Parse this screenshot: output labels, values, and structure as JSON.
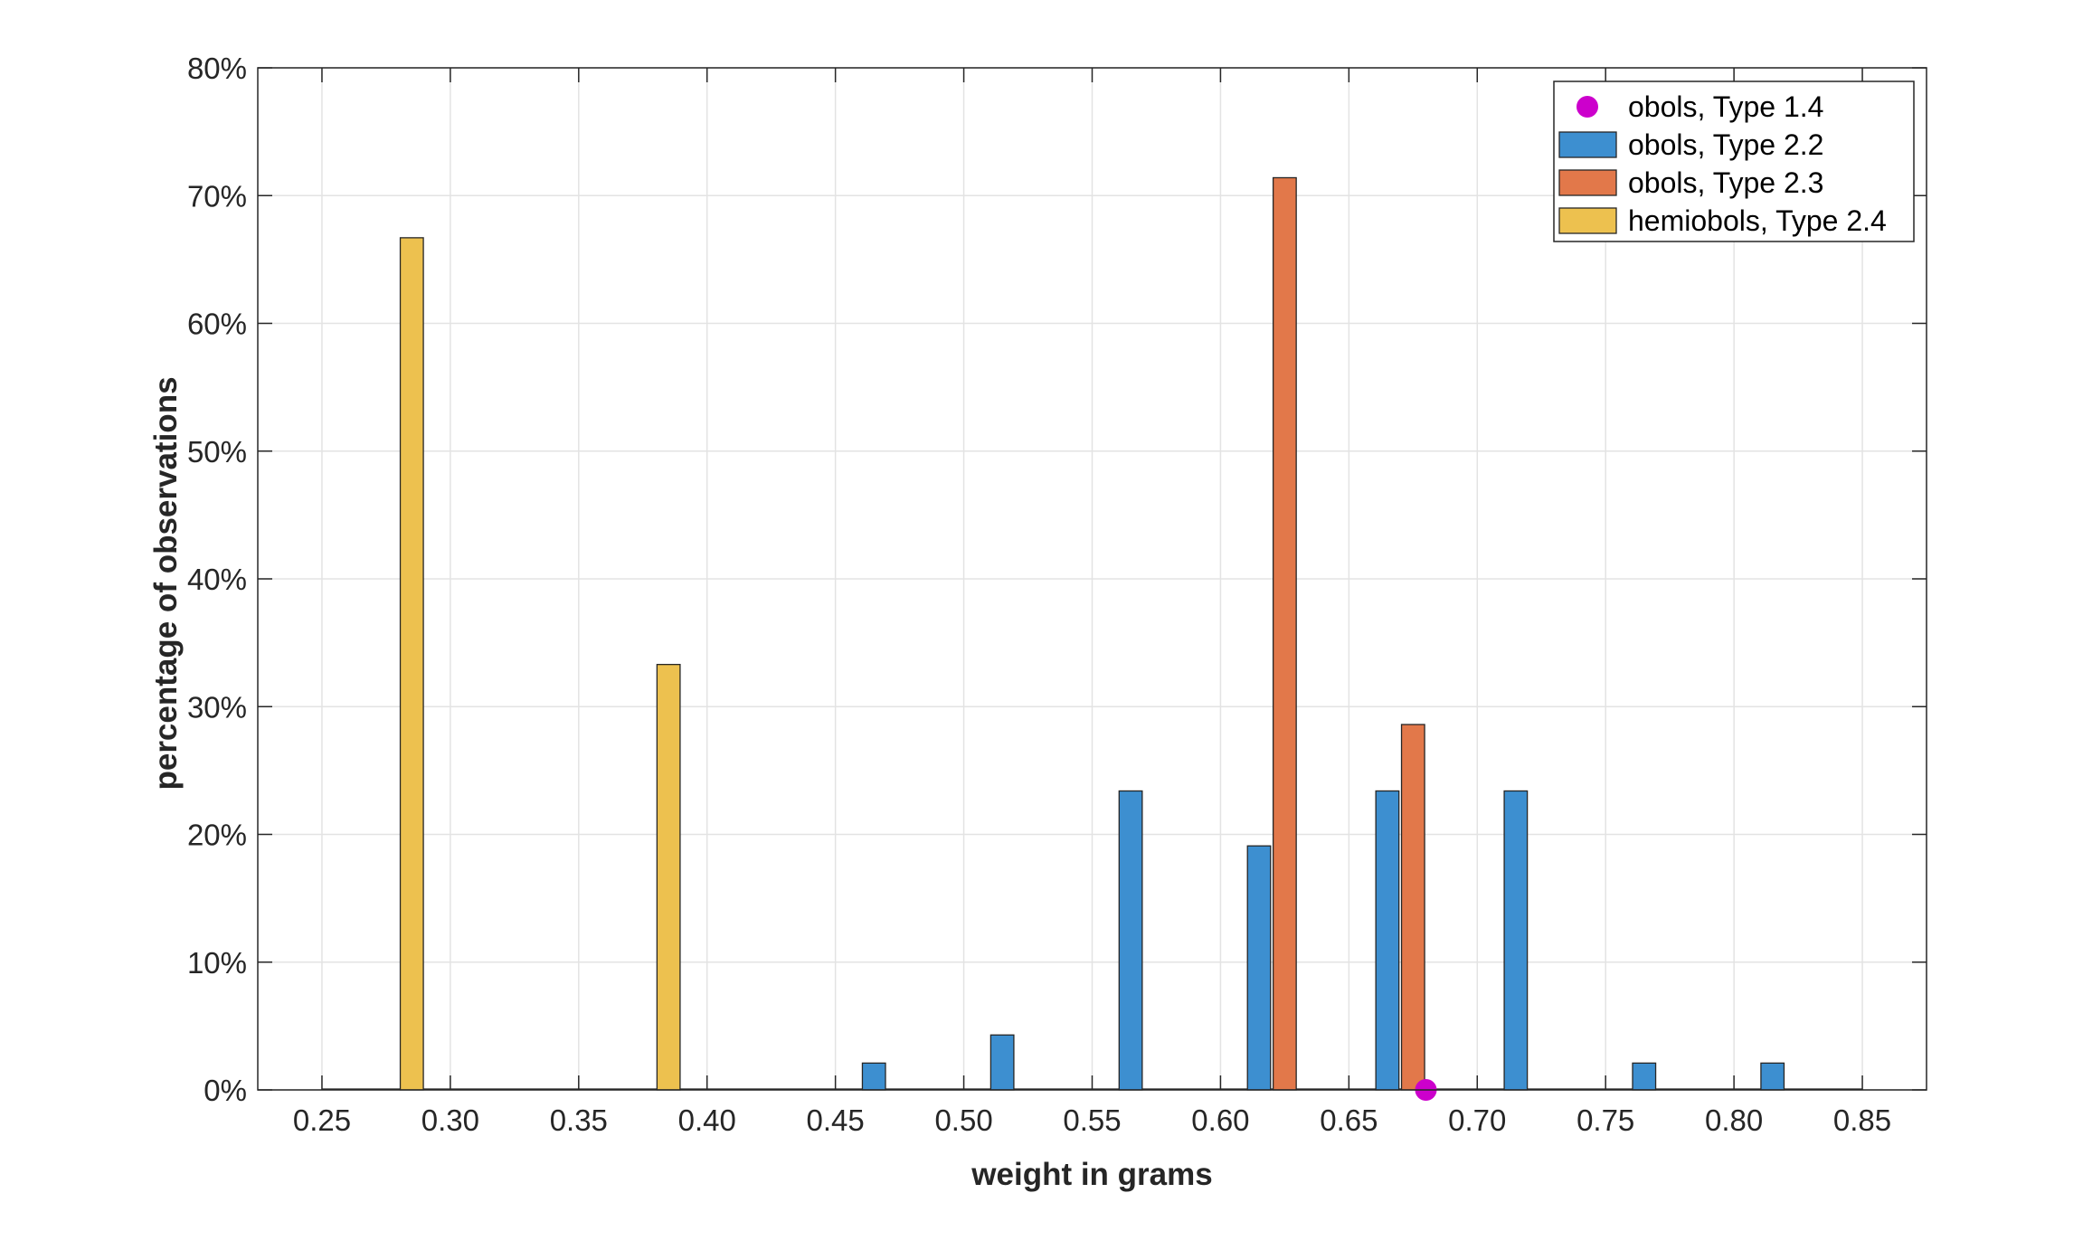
{
  "chart_data": {
    "type": "bar",
    "xlabel": "weight in grams",
    "ylabel": "percentage of observations",
    "xlim": [
      0.225,
      0.875
    ],
    "ylim": [
      0,
      80
    ],
    "xticks": [
      0.25,
      0.3,
      0.35,
      0.4,
      0.45,
      0.5,
      0.55,
      0.6,
      0.65,
      0.7,
      0.75,
      0.8,
      0.85
    ],
    "xtick_labels": [
      "0.25",
      "0.30",
      "0.35",
      "0.40",
      "0.45",
      "0.50",
      "0.55",
      "0.60",
      "0.65",
      "0.70",
      "0.75",
      "0.80",
      "0.85"
    ],
    "yticks": [
      0,
      10,
      20,
      30,
      40,
      50,
      60,
      70,
      80
    ],
    "ytick_labels": [
      "0%",
      "10%",
      "20%",
      "30%",
      "40%",
      "50%",
      "60%",
      "70%",
      "80%"
    ],
    "grid": true,
    "legend_position": "top-right",
    "series": [
      {
        "name": "obols, Type 1.4",
        "kind": "point",
        "color": "#CC00CC",
        "points": [
          {
            "x": 0.68,
            "y": 0
          }
        ]
      },
      {
        "name": "obols, Type 2.2",
        "kind": "bar",
        "color": "#3D8FD0",
        "bars": [
          {
            "x": 0.465,
            "y": 2.1
          },
          {
            "x": 0.515,
            "y": 4.3
          },
          {
            "x": 0.565,
            "y": 23.4
          },
          {
            "x": 0.615,
            "y": 19.1
          },
          {
            "x": 0.665,
            "y": 23.4
          },
          {
            "x": 0.715,
            "y": 23.4
          },
          {
            "x": 0.765,
            "y": 2.1
          },
          {
            "x": 0.815,
            "y": 2.1
          }
        ]
      },
      {
        "name": "obols, Type 2.3",
        "kind": "bar",
        "color": "#E2784A",
        "bars": [
          {
            "x": 0.625,
            "y": 71.4
          },
          {
            "x": 0.675,
            "y": 28.6
          }
        ]
      },
      {
        "name": "hemiobols, Type 2.4",
        "kind": "bar",
        "color": "#EDC14F",
        "bars": [
          {
            "x": 0.285,
            "y": 66.7
          },
          {
            "x": 0.385,
            "y": 33.3
          }
        ]
      }
    ]
  }
}
